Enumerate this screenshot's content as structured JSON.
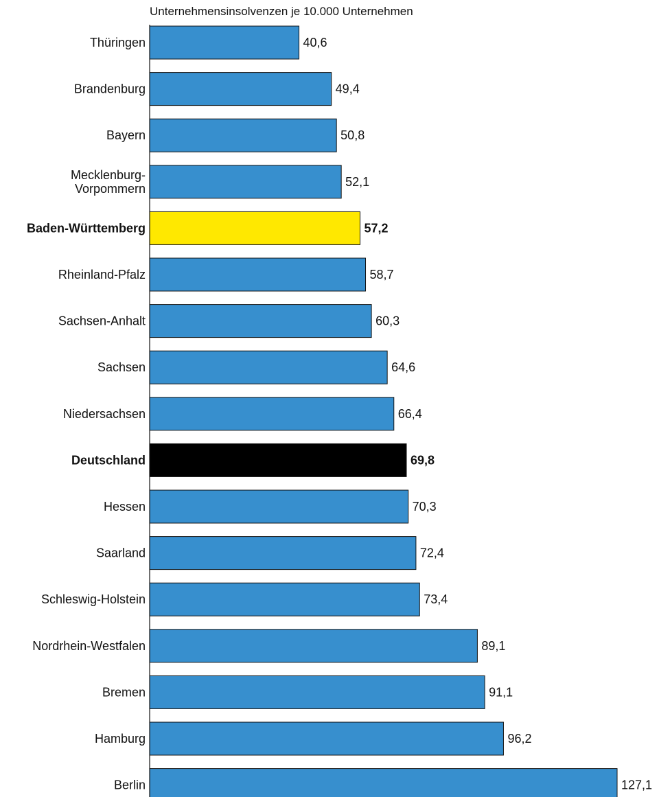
{
  "chart_data": {
    "type": "bar",
    "orientation": "horizontal",
    "subtitle": "Unternehmensinsolvenzen je 10.000 Unternehmen",
    "categories": [
      "Thüringen",
      "Brandenburg",
      "Bayern",
      "Mecklenburg-\nVorpommern",
      "Baden-Württemberg",
      "Rheinland-Pfalz",
      "Sachsen-Anhalt",
      "Sachsen",
      "Niedersachsen",
      "Deutschland",
      "Hessen",
      "Saarland",
      "Schleswig-Holstein",
      "Nordrhein-Westfalen",
      "Bremen",
      "Hamburg",
      "Berlin"
    ],
    "values": [
      40.6,
      49.4,
      50.8,
      52.1,
      57.2,
      58.7,
      60.3,
      64.6,
      66.4,
      69.8,
      70.3,
      72.4,
      73.4,
      89.1,
      91.1,
      96.2,
      127.1
    ],
    "value_labels": [
      "40,6",
      "49,4",
      "50,8",
      "52,1",
      "57,2",
      "58,7",
      "60,3",
      "64,6",
      "66,4",
      "69,8",
      "70,3",
      "72,4",
      "73,4",
      "89,1",
      "91,1",
      "96,2",
      "127,1"
    ],
    "highlights": {
      "Baden-Württemberg": "#ffe800",
      "Deutschland": "#000000"
    },
    "bold_categories": [
      "Baden-Württemberg",
      "Deutschland"
    ],
    "xlim": [
      0,
      127.1
    ],
    "grid": false,
    "legend": "none",
    "colors": {
      "bar": "#378fce",
      "bar_outline": "#111111",
      "axis": "#111111",
      "text": "#111111"
    }
  }
}
